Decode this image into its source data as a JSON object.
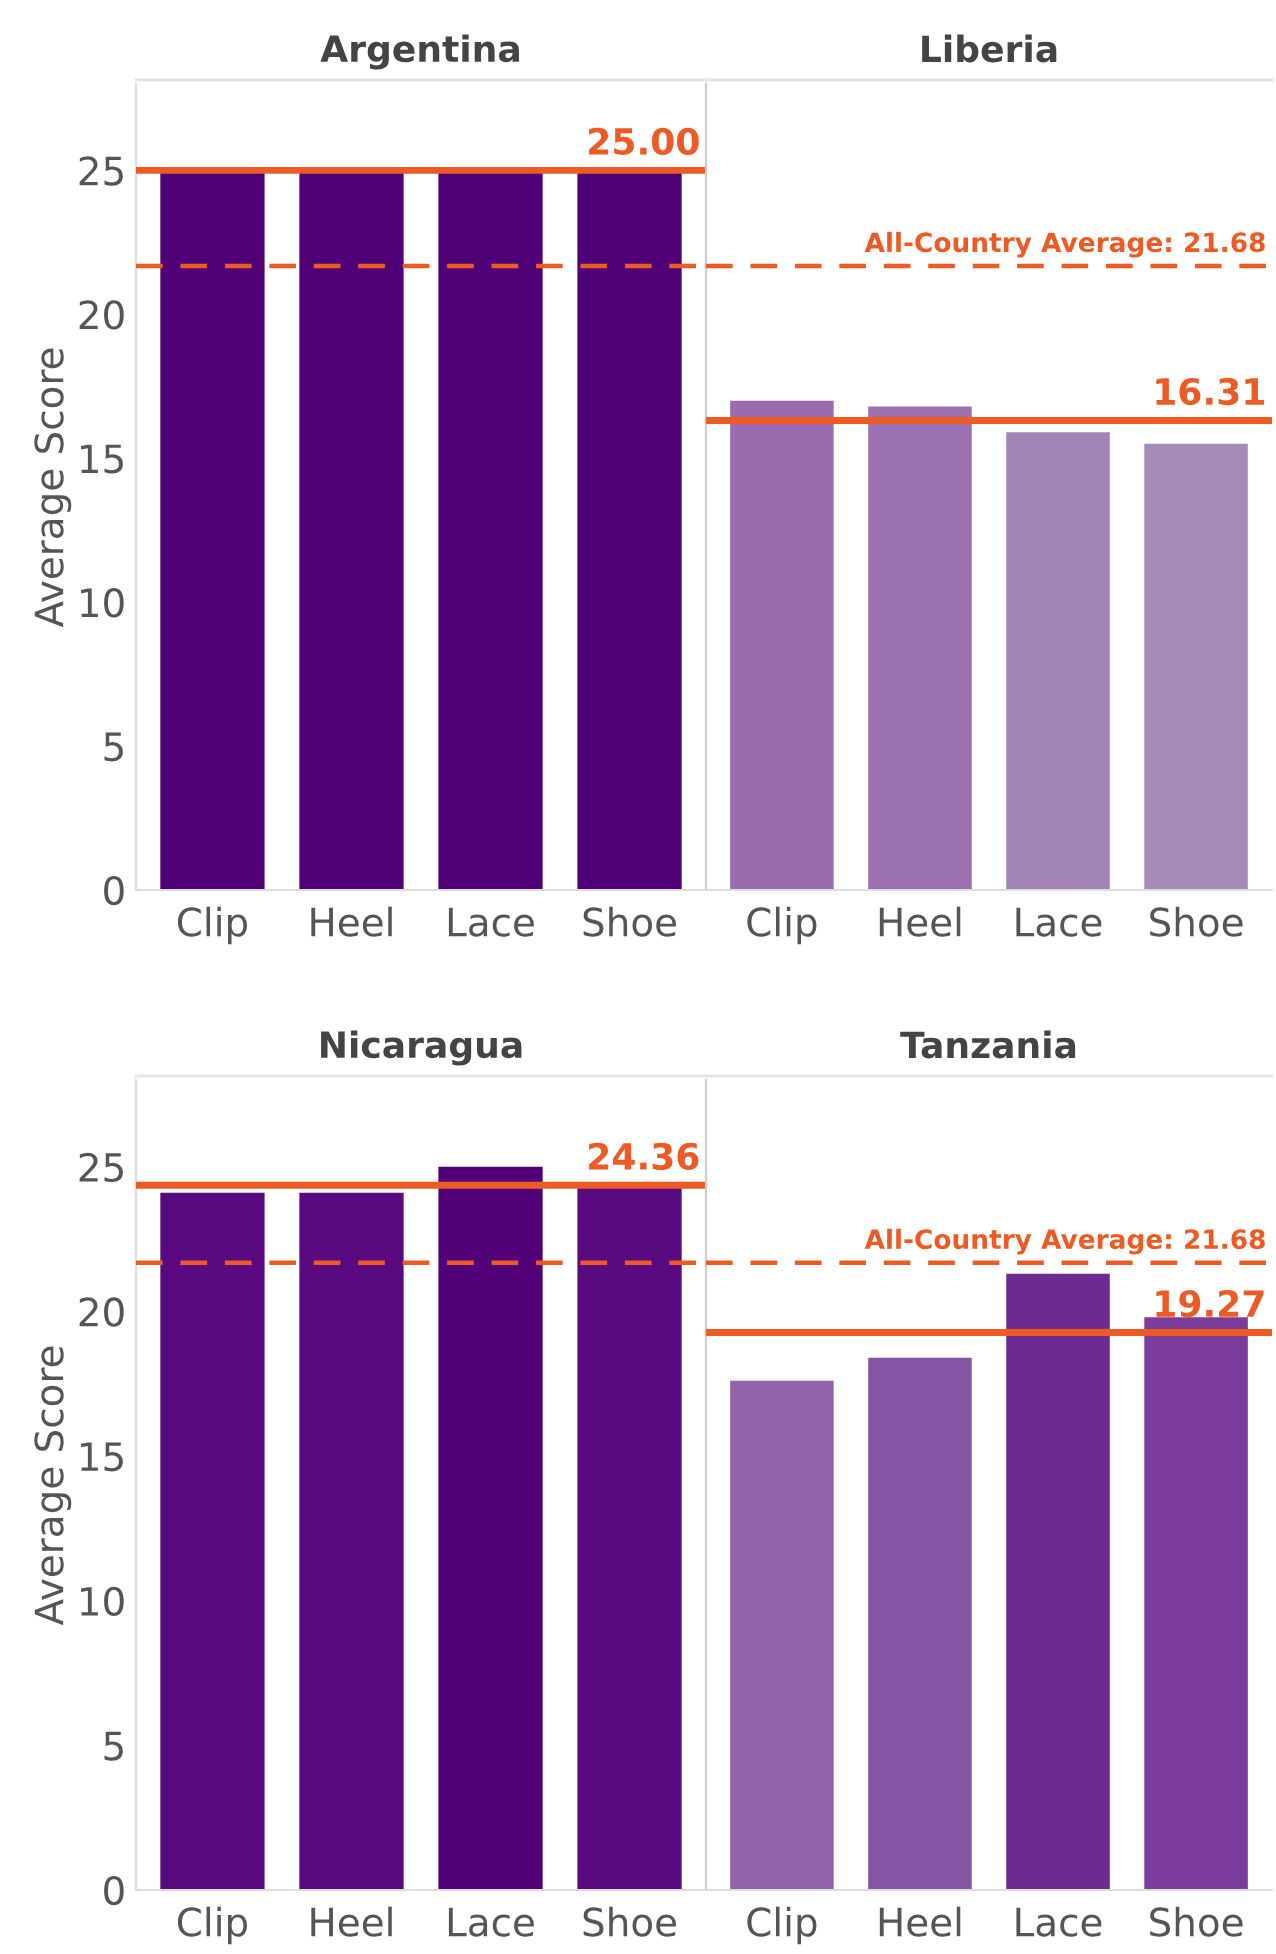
{
  "chart_data": [
    {
      "type": "bar",
      "title": "Argentina",
      "ylabel": "Average Score",
      "categories": [
        "Clip",
        "Heel",
        "Lace",
        "Shoe"
      ],
      "values": [
        25.0,
        25.0,
        25.0,
        25.0
      ],
      "colors": [
        "#4f0077",
        "#4f0077",
        "#4f0077",
        "#4f0077"
      ],
      "ylim": [
        0,
        28
      ],
      "yticks": [
        0,
        5,
        10,
        15,
        20,
        25
      ],
      "grid": false,
      "ref_lines": [
        {
          "axis": "y",
          "value": 25.0,
          "label": "25.00",
          "color": "#ee5a24",
          "line_style": "solid"
        },
        {
          "axis": "y",
          "value": 21.68,
          "color": "#ee5a24",
          "line_style": "dashed"
        }
      ]
    },
    {
      "type": "bar",
      "title": "Liberia",
      "categories": [
        "Clip",
        "Heel",
        "Lace",
        "Shoe"
      ],
      "values": [
        17.0,
        16.8,
        15.9,
        15.5
      ],
      "colors": [
        "#9a6baf",
        "#9b70b0",
        "#a283b5",
        "#a58bb8"
      ],
      "ylim": [
        0,
        28
      ],
      "yticks": [
        0,
        5,
        10,
        15,
        20,
        25
      ],
      "tick_labels": "x",
      "grid": false,
      "ref_lines": [
        {
          "axis": "y",
          "value": 16.31,
          "label": "16.31",
          "color": "#ee5a24",
          "line_style": "solid"
        },
        {
          "axis": "y",
          "value": 21.68,
          "label": "All-Country Average: 21.68",
          "color": "#ee5a24",
          "line_style": "dashed"
        }
      ]
    },
    {
      "type": "bar",
      "title": "Nicaragua",
      "ylabel": "Average Score",
      "categories": [
        "Clip",
        "Heel",
        "Lace",
        "Shoe"
      ],
      "values": [
        24.1,
        24.1,
        25.0,
        24.3
      ],
      "colors": [
        "#5a0a80",
        "#5a0a80",
        "#510077",
        "#5a0a80"
      ],
      "ylim": [
        0,
        28
      ],
      "yticks": [
        0,
        5,
        10,
        15,
        20,
        25
      ],
      "grid": false,
      "ref_lines": [
        {
          "axis": "y",
          "value": 24.36,
          "label": "24.36",
          "color": "#ee5a24",
          "line_style": "solid"
        },
        {
          "axis": "y",
          "value": 21.68,
          "color": "#ee5a24",
          "line_style": "dashed"
        }
      ]
    },
    {
      "type": "bar",
      "title": "Tanzania",
      "categories": [
        "Clip",
        "Heel",
        "Lace",
        "Shoe"
      ],
      "values": [
        17.6,
        18.4,
        21.3,
        19.8
      ],
      "colors": [
        "#9265ab",
        "#8654a5",
        "#6d2a91",
        "#7b3c9b"
      ],
      "ylim": [
        0,
        28
      ],
      "yticks": [
        0,
        5,
        10,
        15,
        20,
        25
      ],
      "tick_labels": "x",
      "grid": false,
      "ref_lines": [
        {
          "axis": "y",
          "value": 19.27,
          "label": "19.27",
          "color": "#ee5a24",
          "line_style": "solid"
        },
        {
          "axis": "y",
          "value": 21.68,
          "label": "All-Country Average: 21.68",
          "color": "#ee5a24",
          "line_style": "dashed"
        }
      ]
    }
  ]
}
